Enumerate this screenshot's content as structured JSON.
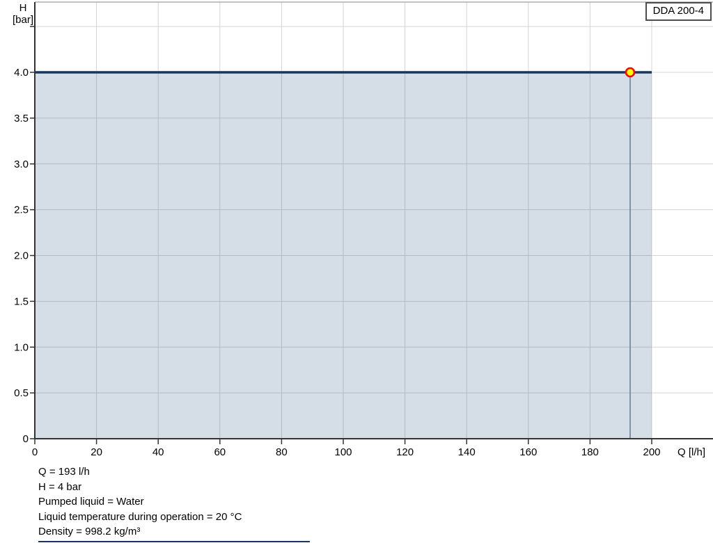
{
  "legend": {
    "label": "DDA 200-4"
  },
  "chart_data": {
    "type": "area",
    "xlabel": "Q [l/h]",
    "ylabel_line1": "H",
    "ylabel_line2": "[bar]",
    "x_ticks": [
      0,
      20,
      40,
      60,
      80,
      100,
      120,
      140,
      160,
      180,
      200
    ],
    "y_ticks": [
      0,
      0.5,
      1.0,
      1.5,
      2.0,
      2.5,
      3.0,
      3.5,
      4.0
    ],
    "y_tick_labels": [
      "0",
      "0.5",
      "1.0",
      "1.5",
      "2.0",
      "2.5",
      "3.0",
      "3.5",
      "4.0"
    ],
    "grid_y_max": 4.5,
    "xlim": [
      0,
      220
    ],
    "ylim": [
      0,
      4.77
    ],
    "grid": true,
    "legend_position": "top-right",
    "series": [
      {
        "name": "DDA 200-4",
        "x": [
          0,
          200
        ],
        "y": [
          4,
          4
        ]
      }
    ],
    "area": {
      "x_start": 0,
      "x_end": 200,
      "y_top": 4
    },
    "operating_point": {
      "q": 193,
      "h": 4,
      "marker": "circle",
      "fill": "#ffff00",
      "stroke": "#ff0000"
    },
    "colors": {
      "curve": "#17365d",
      "fill": "rgba(31,78,121,0.19)",
      "grid": "#d4d4d4",
      "frame": "#9e9e9e",
      "axis": "#333333",
      "op_line": "#6e7f96"
    }
  },
  "footer": {
    "lines": [
      "Q = 193 l/h",
      "H = 4 bar",
      "Pumped liquid = Water",
      "Liquid temperature during operation = 20 °C",
      "Density = 998.2 kg/m³"
    ]
  }
}
